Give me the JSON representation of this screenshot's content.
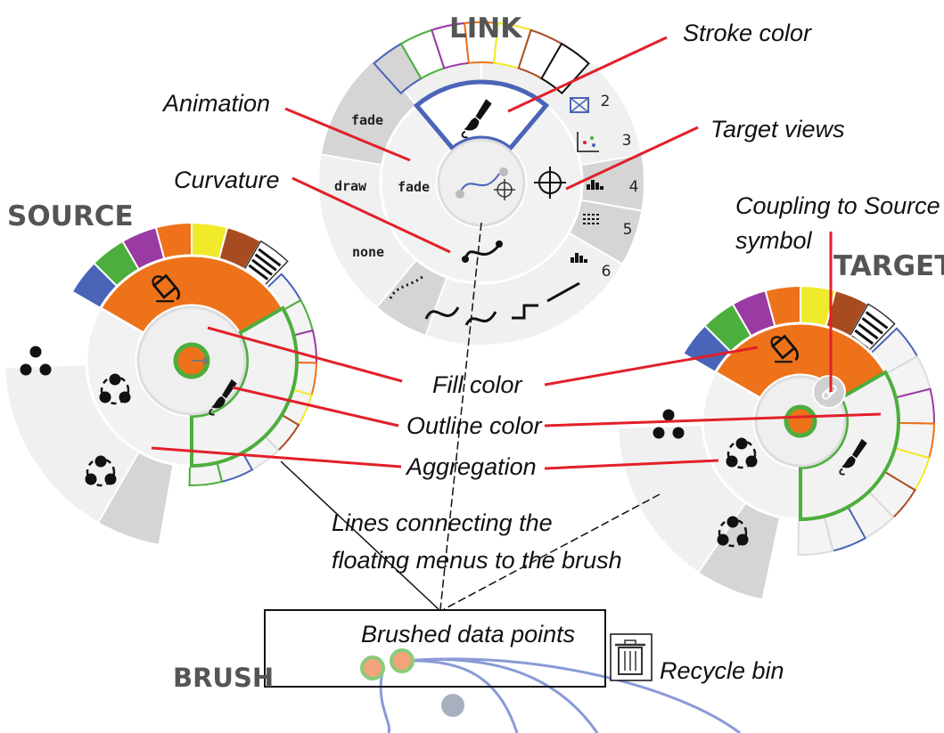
{
  "headers": {
    "link": "LINK",
    "source": "SOURCE",
    "target": "TARGET",
    "brush": "BRUSH"
  },
  "annotations": {
    "stroke_color": "Stroke color",
    "animation": "Animation",
    "target_views": "Target views",
    "curvature": "Curvature",
    "coupling_line1": "Coupling to Source",
    "coupling_line2": "symbol",
    "fill_color": "Fill color",
    "outline_color": "Outline color",
    "aggregation": "Aggregation",
    "lines_line1": "Lines connecting the",
    "lines_line2": "floating menus to the brush",
    "brushed_points": "Brushed data points",
    "recycle_bin": "Recycle bin"
  },
  "link_menu": {
    "animation_options": [
      "fade",
      "draw",
      "none"
    ],
    "animation_selected": "fade",
    "view_numbers": [
      "2",
      "3",
      "4",
      "5",
      "6"
    ]
  },
  "colors": {
    "fill_orange": "#ee7219",
    "outline_green": "#4cae3c",
    "stroke_blue": "#4a64b8",
    "annotation_red": "#e2202a",
    "palette": [
      "#4a64b8",
      "#4cae3c",
      "#9a3aa3",
      "#ee7219",
      "#f0eb2a",
      "#a94b20"
    ]
  }
}
